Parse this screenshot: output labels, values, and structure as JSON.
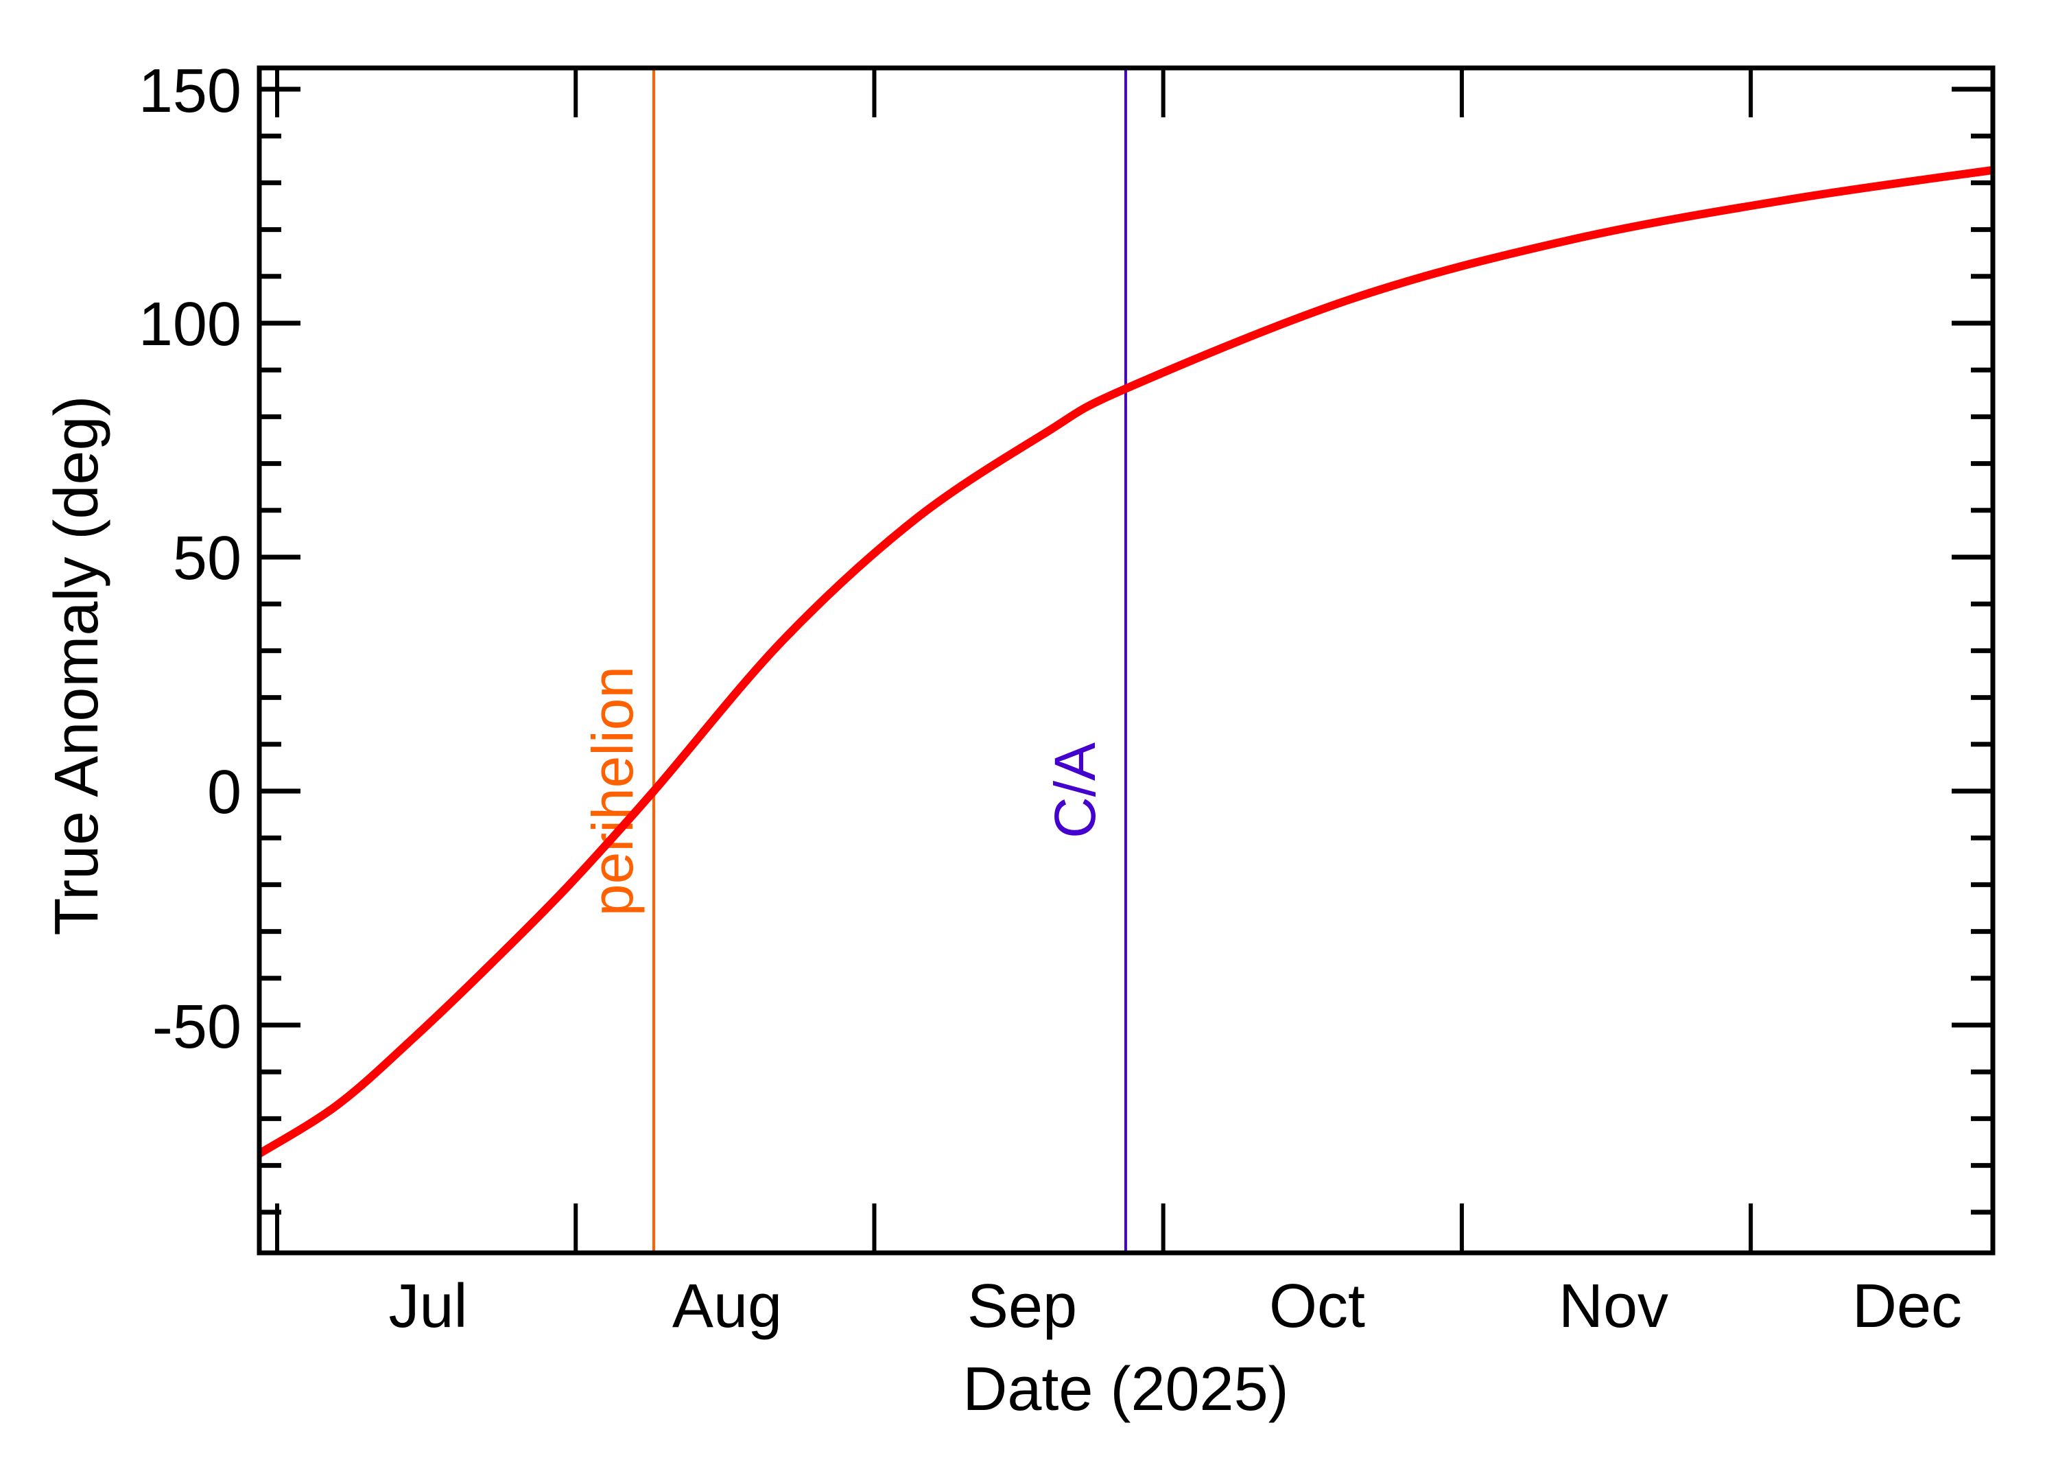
{
  "chart_data": {
    "type": "line",
    "title": "",
    "xlabel": "Date (2025)",
    "ylabel": "True Anomaly (deg)",
    "x_unit": "days since 2025-07-01",
    "xlim": [
      -1.85,
      178.1
    ],
    "ylim": [
      -98,
      154
    ],
    "grid": false,
    "legend": "none",
    "x_ticks": [
      {
        "label": "Jul",
        "start_day": 0,
        "end_day": 31
      },
      {
        "label": "Aug",
        "start_day": 31,
        "end_day": 62
      },
      {
        "label": "Sep",
        "start_day": 62,
        "end_day": 92
      },
      {
        "label": "Oct",
        "start_day": 92,
        "end_day": 123
      },
      {
        "label": "Nov",
        "start_day": 123,
        "end_day": 153
      },
      {
        "label": "Dec",
        "start_day": 153,
        "end_day": 184
      }
    ],
    "y_ticks": [
      -50,
      0,
      50,
      100,
      150
    ],
    "y_minor_step": 10,
    "series": [
      {
        "name": "True Anomaly",
        "color": "#FF0000",
        "x_dates": [
          "Jun 29",
          "Jul 7",
          "Jul 15",
          "Jul 23",
          "Jul 31",
          "Aug 9",
          "Aug 22",
          "Sep 5",
          "Sep 18",
          "Sep 27",
          "Oct 20",
          "Nov 12",
          "Dec 5",
          "Dec 26"
        ],
        "x": [
          -1.85,
          6.3,
          14.3,
          22.3,
          30.3,
          39.1,
          52.5,
          66.2,
          79.8,
          88.1,
          111.7,
          134.5,
          157.5,
          178.1
        ],
        "values": [
          -77.5,
          -67.0,
          -52.5,
          -36.7,
          -20.1,
          0.0,
          32.2,
          58.0,
          76.6,
          86.0,
          105.3,
          117.9,
          126.6,
          132.7
        ]
      }
    ],
    "annotations": [
      {
        "label": "perihelion",
        "date": "Aug 9",
        "x": 39.1,
        "color": "#FF6000",
        "type": "vline"
      },
      {
        "label": "C/A",
        "date": "Sep 27",
        "x": 88.1,
        "color": "#4400CC",
        "type": "vline"
      }
    ]
  },
  "axes": {
    "x_title": "Date (2025)",
    "y_title": "True Anomaly (deg)",
    "x_tick_labels": [
      "Jul",
      "Aug",
      "Sep",
      "Oct",
      "Nov",
      "Dec"
    ],
    "y_tick_labels": [
      "-50",
      "0",
      "50",
      "100",
      "150"
    ]
  },
  "markers": {
    "perihelion_label": "perihelion",
    "ca_label": "C/A"
  }
}
